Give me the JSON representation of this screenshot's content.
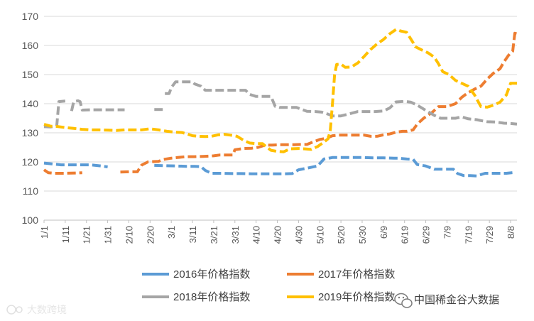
{
  "chart_data": {
    "type": "line",
    "x_tick_labels": [
      "1/1",
      "1/11",
      "1/21",
      "1/31",
      "2/10",
      "2/20",
      "3/1",
      "3/11",
      "3/21",
      "3/31",
      "4/10",
      "4/20",
      "4/30",
      "5/10",
      "5/20",
      "5/30",
      "6/9",
      "6/19",
      "6/29",
      "7/9",
      "7/19",
      "7/29",
      "8/8"
    ],
    "ylim": [
      100,
      170
    ],
    "yticks": [
      100,
      110,
      120,
      130,
      140,
      150,
      160,
      170
    ],
    "grid": "horizontal",
    "legend_position": "bottom",
    "series": [
      {
        "name": "2016年价格指数",
        "color": "#5B9BD5",
        "points": [
          [
            0,
            119.6
          ],
          [
            4,
            119.3
          ],
          [
            8,
            119.0
          ],
          [
            13,
            119.0
          ],
          [
            18,
            119.0
          ],
          [
            22,
            119.0
          ],
          [
            27,
            118.6
          ],
          [
            30,
            118.3
          ],
          [
            35,
            null
          ],
          [
            40,
            null
          ],
          [
            48,
            null
          ],
          [
            52,
            118.8
          ],
          [
            57,
            118.7
          ],
          [
            62,
            118.6
          ],
          [
            67,
            118.5
          ],
          [
            71,
            118.5
          ],
          [
            74,
            118.4
          ],
          [
            76,
            117.1
          ],
          [
            79,
            116.1
          ],
          [
            84,
            116.1
          ],
          [
            89,
            116.0
          ],
          [
            93,
            116.0
          ],
          [
            98,
            115.9
          ],
          [
            103,
            115.9
          ],
          [
            108,
            115.9
          ],
          [
            113,
            115.9
          ],
          [
            117,
            116.0
          ],
          [
            120,
            117.3
          ],
          [
            125,
            118.0
          ],
          [
            129,
            118.6
          ],
          [
            132,
            121.0
          ],
          [
            136,
            121.5
          ],
          [
            140,
            121.5
          ],
          [
            145,
            121.5
          ],
          [
            150,
            121.5
          ],
          [
            155,
            121.4
          ],
          [
            160,
            121.4
          ],
          [
            165,
            121.3
          ],
          [
            167,
            121.3
          ],
          [
            171,
            121.0
          ],
          [
            174,
            120.9
          ],
          [
            176,
            119.1
          ],
          [
            180,
            118.6
          ],
          [
            184,
            117.5
          ],
          [
            189,
            117.5
          ],
          [
            193,
            117.5
          ],
          [
            195,
            116.0
          ],
          [
            198,
            115.3
          ],
          [
            201,
            115.3
          ],
          [
            204,
            115.2
          ],
          [
            208,
            116.1
          ],
          [
            213,
            116.1
          ],
          [
            218,
            116.1
          ],
          [
            222,
            116.4
          ]
        ]
      },
      {
        "name": "2017年价格指数",
        "color": "#ED7D31",
        "points": [
          [
            0,
            117.3
          ],
          [
            2,
            116.3
          ],
          [
            5,
            116.1
          ],
          [
            10,
            116.1
          ],
          [
            15,
            116.2
          ],
          [
            18,
            116.3
          ],
          [
            22,
            null
          ],
          [
            28,
            null
          ],
          [
            33,
            null
          ],
          [
            36,
            116.5
          ],
          [
            40,
            116.6
          ],
          [
            44,
            116.6
          ],
          [
            46,
            118.9
          ],
          [
            49,
            120.0
          ],
          [
            54,
            120.2
          ],
          [
            56,
            120.8
          ],
          [
            60,
            121.3
          ],
          [
            63,
            121.5
          ],
          [
            67,
            121.8
          ],
          [
            71,
            121.8
          ],
          [
            75,
            121.9
          ],
          [
            78,
            122.0
          ],
          [
            80,
            122.1
          ],
          [
            83,
            122.4
          ],
          [
            86,
            122.4
          ],
          [
            89,
            122.4
          ],
          [
            90,
            124.2
          ],
          [
            94,
            124.6
          ],
          [
            98,
            124.7
          ],
          [
            101,
            125.0
          ],
          [
            104,
            125.7
          ],
          [
            108,
            125.8
          ],
          [
            112,
            125.9
          ],
          [
            115,
            125.9
          ],
          [
            118,
            125.9
          ],
          [
            121,
            126.0
          ],
          [
            124,
            126.0
          ],
          [
            127,
            126.9
          ],
          [
            130,
            127.7
          ],
          [
            133,
            128.1
          ],
          [
            136,
            129.0
          ],
          [
            139,
            129.2
          ],
          [
            142,
            129.2
          ],
          [
            145,
            129.2
          ],
          [
            148,
            129.2
          ],
          [
            151,
            129.2
          ],
          [
            154,
            128.8
          ],
          [
            157,
            128.8
          ],
          [
            160,
            129.3
          ],
          [
            163,
            129.6
          ],
          [
            166,
            130.2
          ],
          [
            169,
            130.5
          ],
          [
            171,
            130.5
          ],
          [
            174,
            131.0
          ],
          [
            176,
            133.0
          ],
          [
            179,
            135.0
          ],
          [
            183,
            137.0
          ],
          [
            186,
            139.0
          ],
          [
            190,
            139.0
          ],
          [
            194,
            140.0
          ],
          [
            197,
            142.2
          ],
          [
            200,
            143.8
          ],
          [
            203,
            145.0
          ],
          [
            206,
            146.0
          ],
          [
            209,
            148.5
          ],
          [
            212,
            150.5
          ],
          [
            215,
            152.0
          ],
          [
            217,
            154.5
          ],
          [
            219,
            156.6
          ],
          [
            221,
            158.0
          ],
          [
            222,
            164.2
          ],
          [
            223,
            164.0
          ]
        ]
      },
      {
        "name": "2018年价格指数",
        "color": "#A5A5A5",
        "points": [
          [
            0,
            132.1
          ],
          [
            3,
            132.0
          ],
          [
            6,
            132.3
          ],
          [
            7,
            140.7
          ],
          [
            10,
            140.9
          ],
          [
            12,
            null
          ],
          [
            13,
            137.5
          ],
          [
            14,
            140.7
          ],
          [
            16,
            141.0
          ],
          [
            17,
            140.7
          ],
          [
            18,
            137.8
          ],
          [
            22,
            137.9
          ],
          [
            28,
            137.9
          ],
          [
            34,
            137.9
          ],
          [
            38,
            137.9
          ],
          [
            42,
            null
          ],
          [
            50,
            null
          ],
          [
            52,
            138.0
          ],
          [
            56,
            138.0
          ],
          [
            57,
            null
          ],
          [
            57,
            143.5
          ],
          [
            59,
            143.5
          ],
          [
            60,
            145.5
          ],
          [
            62,
            147.5
          ],
          [
            66,
            147.5
          ],
          [
            70,
            147.5
          ],
          [
            71,
            146.8
          ],
          [
            74,
            146.0
          ],
          [
            76,
            144.6
          ],
          [
            80,
            144.6
          ],
          [
            84,
            144.6
          ],
          [
            88,
            144.6
          ],
          [
            92,
            144.6
          ],
          [
            95,
            144.6
          ],
          [
            97,
            143.2
          ],
          [
            100,
            142.5
          ],
          [
            104,
            142.5
          ],
          [
            107,
            142.5
          ],
          [
            109,
            139.1
          ],
          [
            111,
            138.7
          ],
          [
            115,
            138.7
          ],
          [
            119,
            138.7
          ],
          [
            124,
            137.4
          ],
          [
            128,
            137.3
          ],
          [
            131,
            137.1
          ],
          [
            134,
            136.4
          ],
          [
            136,
            135.8
          ],
          [
            140,
            135.8
          ],
          [
            144,
            136.5
          ],
          [
            148,
            137.3
          ],
          [
            152,
            137.3
          ],
          [
            156,
            137.3
          ],
          [
            160,
            137.5
          ],
          [
            163,
            138.5
          ],
          [
            166,
            140.6
          ],
          [
            170,
            140.8
          ],
          [
            173,
            140.5
          ],
          [
            176,
            139.5
          ],
          [
            180,
            137.7
          ],
          [
            184,
            136.0
          ],
          [
            187,
            135.0
          ],
          [
            191,
            135.0
          ],
          [
            194,
            135.0
          ],
          [
            197,
            135.5
          ],
          [
            200,
            134.8
          ],
          [
            204,
            134.5
          ],
          [
            206,
            134.2
          ],
          [
            209,
            133.8
          ],
          [
            213,
            133.7
          ],
          [
            217,
            133.3
          ],
          [
            220,
            133.2
          ],
          [
            223,
            133.0
          ]
        ]
      },
      {
        "name": "2019年价格指数",
        "color": "#FFC000",
        "points": [
          [
            0,
            132.9
          ],
          [
            3,
            132.3
          ],
          [
            6,
            132.2
          ],
          [
            10,
            131.8
          ],
          [
            14,
            131.5
          ],
          [
            18,
            131.2
          ],
          [
            22,
            131.0
          ],
          [
            26,
            131.0
          ],
          [
            30,
            130.9
          ],
          [
            34,
            130.8
          ],
          [
            38,
            131.0
          ],
          [
            42,
            131.0
          ],
          [
            46,
            131.0
          ],
          [
            50,
            131.4
          ],
          [
            54,
            131.0
          ],
          [
            58,
            130.5
          ],
          [
            62,
            130.2
          ],
          [
            65,
            130.1
          ],
          [
            67,
            129.7
          ],
          [
            70,
            129.0
          ],
          [
            73,
            128.8
          ],
          [
            76,
            128.7
          ],
          [
            79,
            128.8
          ],
          [
            82,
            129.3
          ],
          [
            85,
            129.5
          ],
          [
            88,
            129.2
          ],
          [
            91,
            128.8
          ],
          [
            94,
            127.5
          ],
          [
            97,
            126.5
          ],
          [
            100,
            126.3
          ],
          [
            103,
            126.3
          ],
          [
            105,
            125.1
          ],
          [
            107,
            124.0
          ],
          [
            110,
            123.6
          ],
          [
            113,
            123.5
          ],
          [
            116,
            124.5
          ],
          [
            120,
            124.6
          ],
          [
            123,
            124.5
          ],
          [
            126,
            124.3
          ],
          [
            129,
            125.3
          ],
          [
            132,
            126.8
          ],
          [
            134,
            128.0
          ],
          [
            135,
            131.0
          ],
          [
            136,
            140.0
          ],
          [
            137,
            150.0
          ],
          [
            138,
            153.5
          ],
          [
            140,
            153.6
          ],
          [
            142,
            152.5
          ],
          [
            145,
            152.6
          ],
          [
            148,
            154.0
          ],
          [
            151,
            156.3
          ],
          [
            154,
            158.6
          ],
          [
            157,
            160.5
          ],
          [
            160,
            162.0
          ],
          [
            163,
            164.0
          ],
          [
            166,
            165.5
          ],
          [
            168,
            165.0
          ],
          [
            171,
            164.5
          ],
          [
            174,
            161.0
          ],
          [
            175,
            159.6
          ],
          [
            178,
            158.5
          ],
          [
            181,
            157.5
          ],
          [
            184,
            156.0
          ],
          [
            186,
            153.7
          ],
          [
            188,
            151.0
          ],
          [
            191,
            150.0
          ],
          [
            194,
            148.0
          ],
          [
            197,
            147.0
          ],
          [
            200,
            146.0
          ],
          [
            203,
            143.0
          ],
          [
            206,
            139.0
          ],
          [
            209,
            138.8
          ],
          [
            212,
            139.5
          ],
          [
            215,
            140.5
          ],
          [
            218,
            143.0
          ],
          [
            220,
            147.0
          ],
          [
            223,
            147.0
          ]
        ]
      }
    ]
  },
  "watermark_left": "大数跨境",
  "watermark_right": "中国稀金谷大数据"
}
